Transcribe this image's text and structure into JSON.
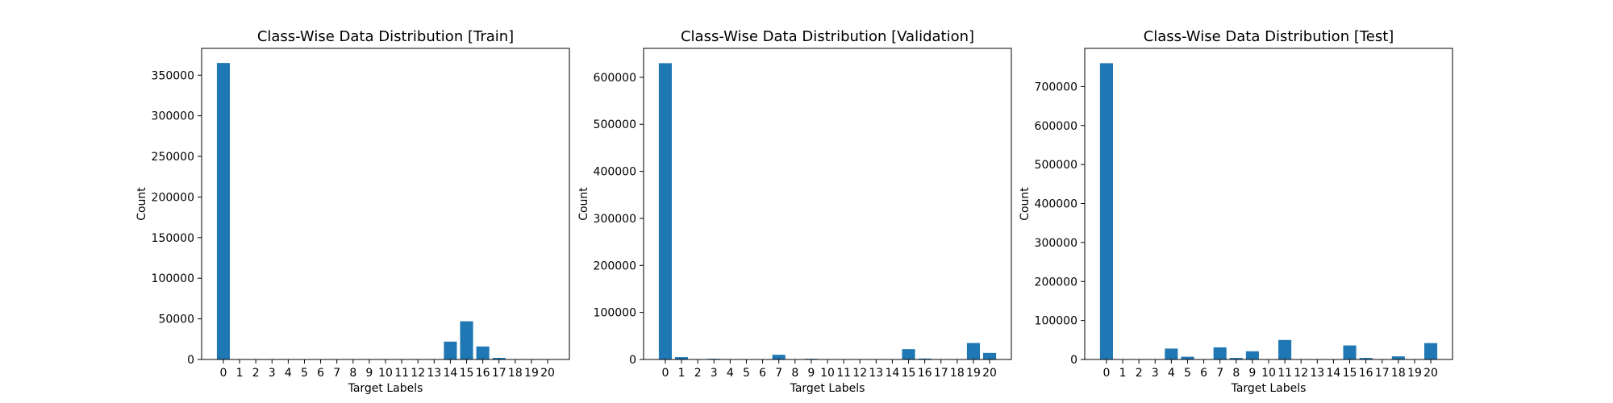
{
  "chart_data": [
    {
      "type": "bar",
      "title": "Class-Wise Data Distribution [Train]",
      "xlabel": "Target Labels",
      "ylabel": "Count",
      "categories": [
        "0",
        "1",
        "2",
        "3",
        "4",
        "5",
        "6",
        "7",
        "8",
        "9",
        "10",
        "11",
        "12",
        "13",
        "14",
        "15",
        "16",
        "17",
        "18",
        "19",
        "20"
      ],
      "values": [
        365000,
        0,
        0,
        0,
        0,
        0,
        0,
        0,
        0,
        0,
        0,
        0,
        0,
        0,
        22000,
        47000,
        16000,
        2000,
        0,
        0,
        0
      ],
      "ylim": [
        0,
        383000
      ],
      "yticks": [
        0,
        50000,
        100000,
        150000,
        200000,
        250000,
        300000,
        350000
      ],
      "color": "#1f77b4",
      "grid": false
    },
    {
      "type": "bar",
      "title": "Class-Wise Data Distribution [Validation]",
      "xlabel": "Target Labels",
      "ylabel": "Count",
      "categories": [
        "0",
        "1",
        "2",
        "3",
        "4",
        "5",
        "6",
        "7",
        "8",
        "9",
        "10",
        "11",
        "12",
        "13",
        "14",
        "15",
        "16",
        "17",
        "18",
        "19",
        "20"
      ],
      "values": [
        630000,
        5000,
        0,
        1500,
        0,
        0,
        0,
        10000,
        0,
        1500,
        0,
        0,
        0,
        0,
        0,
        22000,
        2000,
        0,
        0,
        35000,
        14000
      ],
      "ylim": [
        0,
        661500
      ],
      "yticks": [
        0,
        100000,
        200000,
        300000,
        400000,
        500000,
        600000
      ],
      "color": "#1f77b4",
      "grid": false
    },
    {
      "type": "bar",
      "title": "Class-Wise Data Distribution [Test]",
      "xlabel": "Target Labels",
      "ylabel": "Count",
      "categories": [
        "0",
        "1",
        "2",
        "3",
        "4",
        "5",
        "6",
        "7",
        "8",
        "9",
        "10",
        "11",
        "12",
        "13",
        "14",
        "15",
        "16",
        "17",
        "18",
        "19",
        "20"
      ],
      "values": [
        760000,
        0,
        0,
        0,
        28000,
        7000,
        0,
        31000,
        4000,
        21000,
        0,
        50000,
        0,
        0,
        0,
        36000,
        4000,
        0,
        8000,
        0,
        42000
      ],
      "ylim": [
        0,
        798000
      ],
      "yticks": [
        0,
        100000,
        200000,
        300000,
        400000,
        500000,
        600000,
        700000
      ],
      "color": "#1f77b4",
      "grid": false
    }
  ]
}
